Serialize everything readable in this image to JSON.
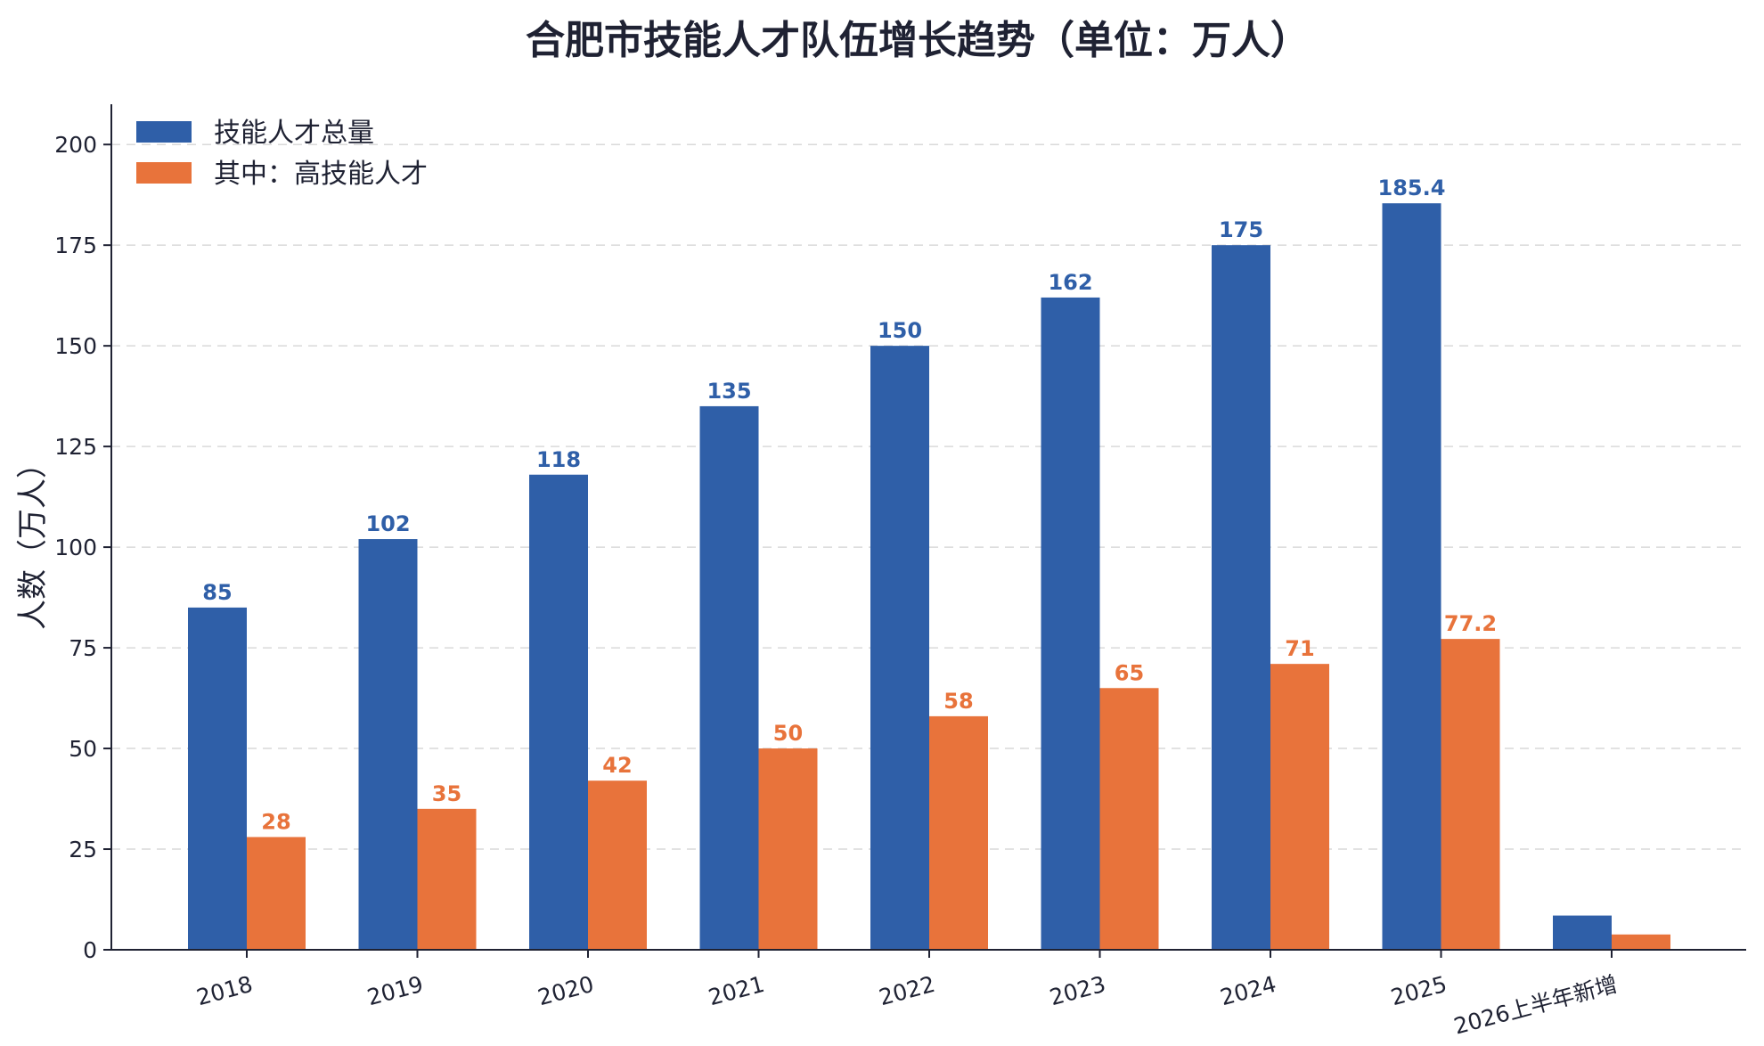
{
  "chart_data": {
    "type": "bar",
    "title": "合肥市技能人才队伍增长趋势（单位：万人）",
    "xlabel": "",
    "ylabel": "人数（万人）",
    "ylim": [
      0,
      210
    ],
    "yticks": [
      0,
      25,
      50,
      75,
      100,
      125,
      150,
      175,
      200
    ],
    "grid": true,
    "legend_position": "top-left",
    "categories": [
      "2018",
      "2019",
      "2020",
      "2021",
      "2022",
      "2023",
      "2024",
      "2025",
      "2026上半年新增"
    ],
    "series": [
      {
        "name": "技能人才总量",
        "color": "#2f5fa8",
        "values": [
          85,
          102,
          118,
          135,
          150,
          162,
          175,
          185.4,
          8.5
        ],
        "labels": [
          "85",
          "102",
          "118",
          "135",
          "150",
          "162",
          "175",
          "185.4",
          null
        ]
      },
      {
        "name": "其中：高技能人才",
        "color": "#e8733b",
        "values": [
          28,
          35,
          42,
          50,
          58,
          65,
          71,
          77.2,
          3.8
        ],
        "labels": [
          "28",
          "35",
          "42",
          "50",
          "58",
          "65",
          "71",
          "77.2",
          null
        ]
      }
    ]
  }
}
